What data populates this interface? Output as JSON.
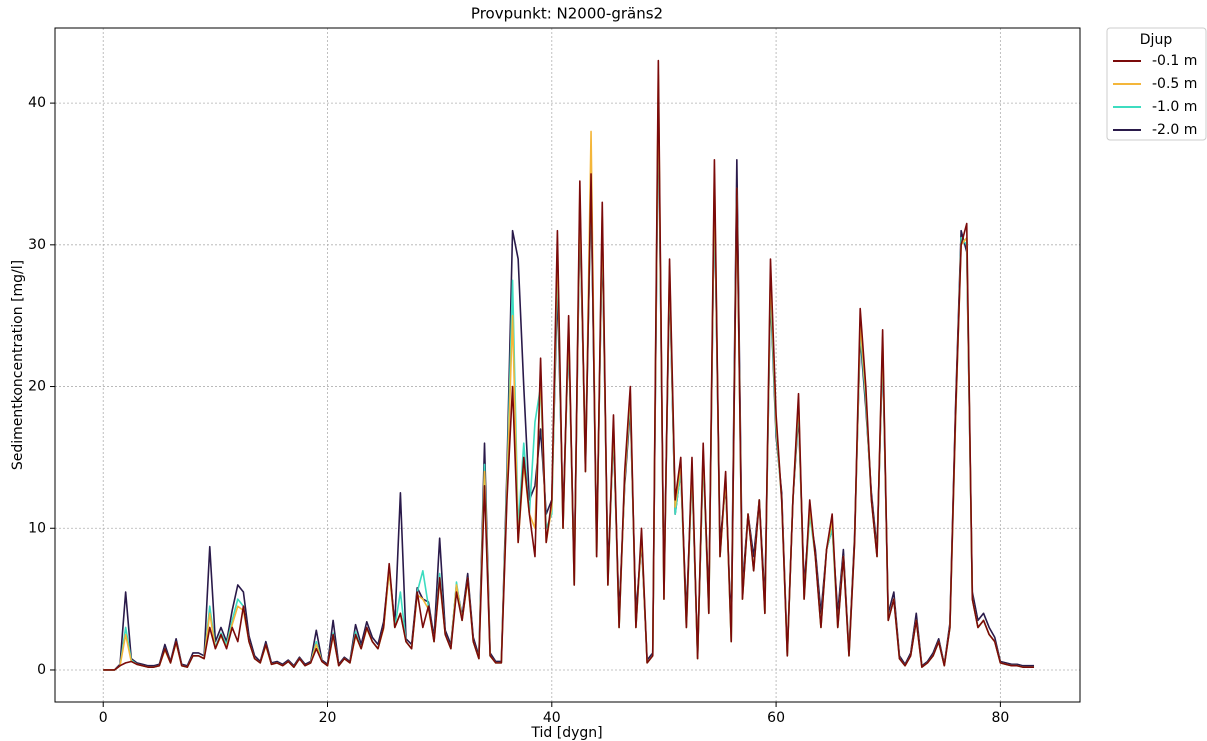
{
  "chart_data": {
    "type": "line",
    "title": "Provpunkt: N2000-gräns2",
    "x_label": "Tid [dygn]",
    "y_label": "Sedimentkoncentration [mg/l]",
    "legend_title": "Djup",
    "grid": true,
    "xlim": [
      -4.3,
      87.1
    ],
    "ylim": [
      -2.26,
      45.3
    ],
    "xticks": [
      0,
      20,
      40,
      60,
      80
    ],
    "yticks": [
      0,
      10,
      20,
      30,
      40
    ],
    "x": [
      0,
      0.5,
      1,
      1.5,
      2,
      2.5,
      3,
      3.5,
      4,
      4.5,
      5,
      5.5,
      6,
      6.5,
      7,
      7.5,
      8,
      8.5,
      9,
      9.5,
      10,
      10.5,
      11,
      11.5,
      12,
      12.5,
      13,
      13.5,
      14,
      14.5,
      15,
      15.5,
      16,
      16.5,
      17,
      17.5,
      18,
      18.5,
      19,
      19.5,
      20,
      20.5,
      21,
      21.5,
      22,
      22.5,
      23,
      23.5,
      24,
      24.5,
      25,
      25.5,
      26,
      26.5,
      27,
      27.5,
      28,
      28.5,
      29,
      29.5,
      30,
      30.5,
      31,
      31.5,
      32,
      32.5,
      33,
      33.5,
      34,
      34.5,
      35,
      35.5,
      36,
      36.5,
      37,
      37.5,
      38,
      38.5,
      39,
      39.5,
      40,
      40.5,
      41,
      41.5,
      42,
      42.5,
      43,
      43.5,
      44,
      44.5,
      45,
      45.5,
      46,
      46.5,
      47,
      47.5,
      48,
      48.5,
      49,
      49.5,
      50,
      50.5,
      51,
      51.5,
      52,
      52.5,
      53,
      53.5,
      54,
      54.5,
      55,
      55.5,
      56,
      56.5,
      57,
      57.5,
      58,
      58.5,
      59,
      59.5,
      60,
      60.5,
      61,
      61.5,
      62,
      62.5,
      63,
      63.5,
      64,
      64.5,
      65,
      65.5,
      66,
      66.5,
      67,
      67.5,
      68,
      68.5,
      69,
      69.5,
      70,
      70.5,
      71,
      71.5,
      72,
      72.5,
      73,
      73.5,
      74,
      74.5,
      75,
      75.5,
      76,
      76.5,
      77,
      77.5,
      78,
      78.5,
      79,
      79.5,
      80,
      80.5,
      81,
      81.5,
      82,
      82.5,
      83
    ],
    "series": [
      {
        "name": "-0.1 m",
        "color": "#7b0a0a",
        "values": [
          0,
          0,
          0,
          0.3,
          0.5,
          0.6,
          0.4,
          0.3,
          0.2,
          0.2,
          0.3,
          1.5,
          0.5,
          2.0,
          0.3,
          0.2,
          1.0,
          1.0,
          0.8,
          3.0,
          1.5,
          2.5,
          1.5,
          3.0,
          2.0,
          4.5,
          2.0,
          0.8,
          0.5,
          1.8,
          0.4,
          0.5,
          0.3,
          0.6,
          0.2,
          0.8,
          0.3,
          0.5,
          1.5,
          0.6,
          0.3,
          2.5,
          0.3,
          0.8,
          0.5,
          2.5,
          1.5,
          3.0,
          2.0,
          1.5,
          3.0,
          7.5,
          3.0,
          4.0,
          2.0,
          1.5,
          5.5,
          3.0,
          4.5,
          2.0,
          6.5,
          2.5,
          1.5,
          5.5,
          3.5,
          6.5,
          2.0,
          0.8,
          13.0,
          1.0,
          0.5,
          0.5,
          12.0,
          20.0,
          9.0,
          15.0,
          11.0,
          8.0,
          22.0,
          9.0,
          12.0,
          31.0,
          10.0,
          25.0,
          6.0,
          34.5,
          14.0,
          35.0,
          8.0,
          33.0,
          6.0,
          18.0,
          3.0,
          14.0,
          20.0,
          3.0,
          10.0,
          0.5,
          1.0,
          43.0,
          5.0,
          29.0,
          12.0,
          15.0,
          3.0,
          15.0,
          0.8,
          16.0,
          4.0,
          36.0,
          8.0,
          14.0,
          2.0,
          34.0,
          5.0,
          11.0,
          7.0,
          12.0,
          4.0,
          29.0,
          18.0,
          12.0,
          1.0,
          12.0,
          19.5,
          5.0,
          12.0,
          8.0,
          3.0,
          8.5,
          11.0,
          3.0,
          8.0,
          1.0,
          9.0,
          25.5,
          20.0,
          12.0,
          8.0,
          24.0,
          3.5,
          5.0,
          0.8,
          0.3,
          1.0,
          3.5,
          0.2,
          0.5,
          1.0,
          2.0,
          0.3,
          3.0,
          18.0,
          30.0,
          31.5,
          5.0,
          3.0,
          3.5,
          2.5,
          2.0,
          0.5,
          0.4,
          0.3,
          0.3,
          0.2,
          0.2,
          0.2
        ]
      },
      {
        "name": "-0.5 m",
        "color": "#f4b63a",
        "values": [
          0,
          0,
          0,
          0.3,
          2.5,
          0.6,
          0.4,
          0.3,
          0.2,
          0.2,
          0.3,
          1.4,
          0.5,
          1.9,
          0.3,
          0.2,
          1.0,
          1.0,
          0.8,
          4.0,
          1.5,
          2.4,
          1.6,
          3.2,
          4.5,
          4.2,
          2.0,
          0.8,
          0.5,
          1.7,
          0.4,
          0.5,
          0.3,
          0.6,
          0.2,
          0.8,
          0.3,
          0.5,
          1.8,
          0.6,
          0.3,
          2.4,
          0.3,
          0.8,
          0.5,
          2.4,
          1.5,
          2.9,
          2.0,
          1.5,
          2.9,
          7.0,
          3.0,
          4.0,
          2.0,
          1.5,
          5.3,
          5.0,
          4.3,
          2.0,
          6.3,
          2.5,
          1.5,
          6.0,
          3.5,
          6.3,
          2.0,
          0.8,
          14.0,
          1.0,
          0.5,
          0.5,
          12.5,
          25.0,
          9.0,
          14.5,
          11.0,
          10.0,
          21.0,
          9.0,
          11.5,
          30.0,
          10.0,
          24.5,
          6.0,
          33.5,
          14.0,
          38.0,
          8.0,
          32.0,
          6.0,
          17.5,
          3.0,
          13.5,
          19.5,
          3.0,
          9.5,
          0.5,
          1.0,
          42.0,
          5.0,
          28.5,
          11.5,
          14.5,
          3.0,
          14.5,
          0.8,
          15.5,
          4.0,
          35.0,
          8.0,
          13.5,
          2.0,
          33.5,
          5.0,
          11.0,
          7.0,
          12.0,
          4.0,
          28.0,
          17.5,
          12.0,
          1.0,
          12.0,
          19.0,
          5.0,
          11.5,
          8.0,
          3.0,
          8.5,
          10.5,
          3.0,
          8.0,
          1.0,
          9.0,
          24.5,
          19.5,
          12.0,
          8.0,
          23.5,
          3.5,
          5.0,
          0.8,
          0.3,
          1.0,
          3.5,
          0.2,
          0.5,
          1.0,
          2.0,
          0.3,
          3.0,
          17.5,
          30.0,
          30.5,
          5.0,
          3.0,
          3.5,
          2.5,
          2.0,
          0.5,
          0.4,
          0.3,
          0.3,
          0.2,
          0.2,
          0.2
        ]
      },
      {
        "name": "-1.0 m",
        "color": "#3ddcc0",
        "values": [
          0,
          0,
          0,
          0.3,
          3.0,
          0.7,
          0.4,
          0.3,
          0.2,
          0.2,
          0.3,
          1.5,
          0.5,
          2.0,
          0.3,
          0.2,
          1.0,
          1.0,
          0.8,
          4.5,
          1.6,
          2.6,
          1.8,
          3.5,
          5.0,
          4.5,
          2.0,
          0.8,
          0.5,
          1.8,
          0.4,
          0.5,
          0.3,
          0.6,
          0.2,
          0.8,
          0.3,
          0.5,
          2.0,
          0.6,
          0.3,
          2.6,
          0.3,
          0.8,
          0.5,
          2.7,
          1.5,
          3.0,
          2.0,
          1.5,
          3.0,
          7.0,
          3.0,
          5.5,
          2.0,
          1.5,
          5.5,
          7.0,
          4.5,
          2.0,
          6.8,
          2.5,
          1.5,
          6.2,
          3.5,
          6.5,
          2.0,
          0.8,
          14.5,
          1.0,
          0.5,
          0.5,
          13.0,
          27.5,
          10.0,
          16.0,
          11.0,
          17.5,
          20.0,
          10.0,
          11.0,
          29.0,
          10.0,
          24.0,
          6.0,
          33.0,
          14.0,
          34.5,
          8.0,
          31.5,
          6.0,
          17.0,
          3.0,
          13.5,
          19.0,
          3.0,
          9.5,
          0.5,
          1.0,
          41.0,
          5.0,
          28.0,
          11.0,
          14.0,
          3.0,
          14.0,
          0.8,
          15.0,
          4.0,
          34.0,
          8.0,
          13.5,
          2.0,
          34.0,
          5.0,
          11.0,
          7.0,
          12.0,
          4.0,
          27.0,
          17.0,
          12.0,
          1.0,
          12.0,
          18.5,
          5.0,
          11.0,
          8.0,
          3.0,
          8.5,
          10.0,
          3.0,
          8.0,
          1.0,
          9.0,
          24.0,
          19.0,
          12.0,
          8.0,
          23.0,
          3.5,
          5.0,
          0.8,
          0.3,
          1.0,
          3.5,
          0.2,
          0.5,
          1.0,
          2.0,
          0.3,
          3.0,
          17.5,
          30.5,
          30.0,
          5.0,
          3.0,
          3.5,
          2.5,
          2.0,
          0.5,
          0.4,
          0.3,
          0.3,
          0.2,
          0.2,
          0.2
        ]
      },
      {
        "name": "-2.0 m",
        "color": "#2a1a4a",
        "values": [
          0,
          0,
          0,
          0.4,
          5.5,
          0.8,
          0.5,
          0.4,
          0.3,
          0.3,
          0.4,
          1.8,
          0.6,
          2.2,
          0.4,
          0.3,
          1.2,
          1.2,
          1.0,
          8.7,
          2.0,
          3.0,
          2.0,
          4.2,
          6.0,
          5.5,
          2.4,
          1.0,
          0.6,
          2.0,
          0.5,
          0.6,
          0.4,
          0.7,
          0.3,
          0.9,
          0.4,
          0.6,
          2.8,
          0.7,
          0.4,
          3.5,
          0.4,
          0.9,
          0.6,
          3.2,
          1.8,
          3.4,
          2.3,
          1.8,
          3.4,
          7.2,
          3.2,
          12.5,
          2.2,
          1.8,
          5.8,
          5.0,
          4.8,
          2.3,
          9.3,
          2.8,
          1.8,
          6.0,
          3.8,
          6.8,
          2.3,
          1.0,
          16.0,
          1.2,
          0.6,
          0.6,
          14.0,
          31.0,
          29.0,
          20.0,
          12.0,
          13.0,
          17.0,
          11.0,
          12.0,
          27.0,
          11.0,
          23.5,
          7.0,
          32.0,
          15.0,
          34.0,
          9.0,
          30.5,
          7.0,
          16.5,
          4.0,
          13.0,
          18.5,
          4.0,
          9.0,
          0.7,
          1.2,
          40.0,
          6.0,
          27.5,
          11.0,
          14.0,
          4.0,
          14.0,
          1.0,
          15.0,
          5.0,
          33.5,
          9.0,
          13.0,
          3.0,
          36.0,
          6.0,
          11.0,
          8.0,
          12.0,
          5.0,
          26.5,
          16.5,
          12.5,
          1.2,
          12.0,
          18.0,
          6.0,
          11.0,
          8.5,
          4.0,
          8.5,
          10.0,
          4.0,
          8.5,
          1.2,
          9.5,
          23.5,
          18.5,
          12.5,
          8.5,
          22.5,
          4.0,
          5.5,
          1.0,
          0.4,
          1.2,
          4.0,
          0.3,
          0.6,
          1.2,
          2.2,
          0.4,
          3.3,
          18.5,
          31.0,
          29.5,
          5.5,
          3.5,
          4.0,
          3.0,
          2.3,
          0.6,
          0.5,
          0.4,
          0.4,
          0.3,
          0.3,
          0.3
        ]
      }
    ]
  }
}
